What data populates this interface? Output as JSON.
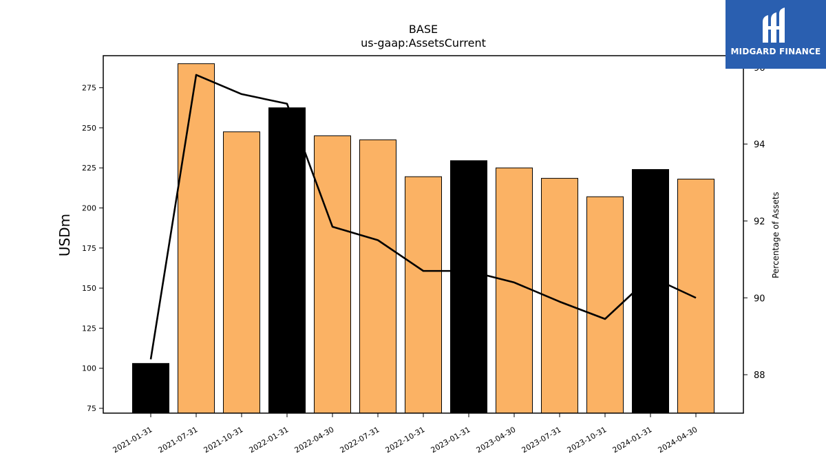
{
  "chart_data": {
    "type": "bar",
    "title": "BASE",
    "subtitle": "us-gaap:AssetsCurrent",
    "ylabel": "USDm",
    "y2label": "Percentage of Assets",
    "categories": [
      "2021-01-31",
      "2021-07-31",
      "2021-10-31",
      "2022-01-31",
      "2022-04-30",
      "2022-07-31",
      "2022-10-31",
      "2023-01-31",
      "2023-04-30",
      "2023-07-31",
      "2023-10-31",
      "2024-01-31",
      "2024-04-30"
    ],
    "series": [
      {
        "type": "bar",
        "values": [
          103,
          290,
          247.5,
          262.5,
          245,
          242.5,
          219.5,
          229.5,
          225,
          218.5,
          207,
          224,
          218
        ],
        "colors": [
          "#000000",
          "#fbb264",
          "#fbb264",
          "#000000",
          "#fbb264",
          "#fbb264",
          "#fbb264",
          "#000000",
          "#fbb264",
          "#fbb264",
          "#fbb264",
          "#000000",
          "#fbb264"
        ]
      },
      {
        "type": "line",
        "axis": "right",
        "color": "#000000",
        "values": [
          88.4,
          95.8,
          95.3,
          95.05,
          91.85,
          91.5,
          90.7,
          90.7,
          90.4,
          89.9,
          89.45,
          90.55,
          90.0
        ]
      }
    ],
    "ylim": [
      72,
      295
    ],
    "yticks": [
      75,
      100,
      125,
      150,
      175,
      200,
      225,
      250,
      275
    ],
    "y2lim": [
      87,
      96.3
    ],
    "y2ticks": [
      88,
      90,
      92,
      94,
      96
    ],
    "bar_edge_color": "#000000"
  },
  "logo": {
    "text": "MIDGARD FINANCE",
    "background": "#2a5fb0"
  }
}
